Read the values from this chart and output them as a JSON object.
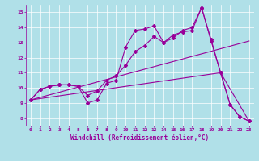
{
  "xlabel": "Windchill (Refroidissement éolien,°C)",
  "ylabel": "",
  "background_color": "#b0e0e8",
  "line_color": "#990099",
  "grid_color": "#ffffff",
  "xlim": [
    -0.5,
    23.5
  ],
  "ylim": [
    7.5,
    15.5
  ],
  "xticks": [
    0,
    1,
    2,
    3,
    4,
    5,
    6,
    7,
    8,
    9,
    10,
    11,
    12,
    13,
    14,
    15,
    16,
    17,
    18,
    19,
    20,
    21,
    22,
    23
  ],
  "yticks": [
    8,
    9,
    10,
    11,
    12,
    13,
    14,
    15
  ],
  "lines": [
    {
      "x": [
        0,
        1,
        2,
        3,
        4,
        5,
        6,
        7,
        8,
        9,
        10,
        11,
        12,
        13,
        14,
        15,
        16,
        17,
        18,
        19,
        20,
        21,
        22,
        23
      ],
      "y": [
        9.2,
        9.9,
        10.1,
        10.2,
        10.2,
        10.1,
        9.0,
        9.2,
        10.3,
        10.5,
        12.7,
        13.8,
        13.9,
        14.1,
        13.0,
        13.5,
        13.7,
        13.8,
        15.3,
        13.1,
        11.0,
        8.9,
        8.1,
        7.8
      ],
      "marker": "D",
      "markersize": 2.0,
      "linewidth": 0.8
    },
    {
      "x": [
        0,
        1,
        2,
        3,
        4,
        5,
        6,
        7,
        8,
        9,
        10,
        11,
        12,
        13,
        14,
        15,
        16,
        17,
        18,
        19,
        20,
        21,
        22,
        23
      ],
      "y": [
        9.2,
        9.9,
        10.1,
        10.2,
        10.2,
        10.1,
        9.5,
        9.8,
        10.5,
        10.8,
        11.5,
        12.4,
        12.8,
        13.4,
        13.0,
        13.3,
        13.8,
        14.0,
        15.3,
        13.2,
        11.0,
        8.9,
        8.1,
        7.8
      ],
      "marker": "D",
      "markersize": 2.0,
      "linewidth": 0.8
    },
    {
      "x": [
        0,
        23
      ],
      "y": [
        9.2,
        13.1
      ],
      "marker": null,
      "markersize": 0,
      "linewidth": 0.8
    },
    {
      "x": [
        0,
        20,
        23
      ],
      "y": [
        9.2,
        11.0,
        7.8
      ],
      "marker": null,
      "markersize": 0,
      "linewidth": 0.8
    }
  ]
}
